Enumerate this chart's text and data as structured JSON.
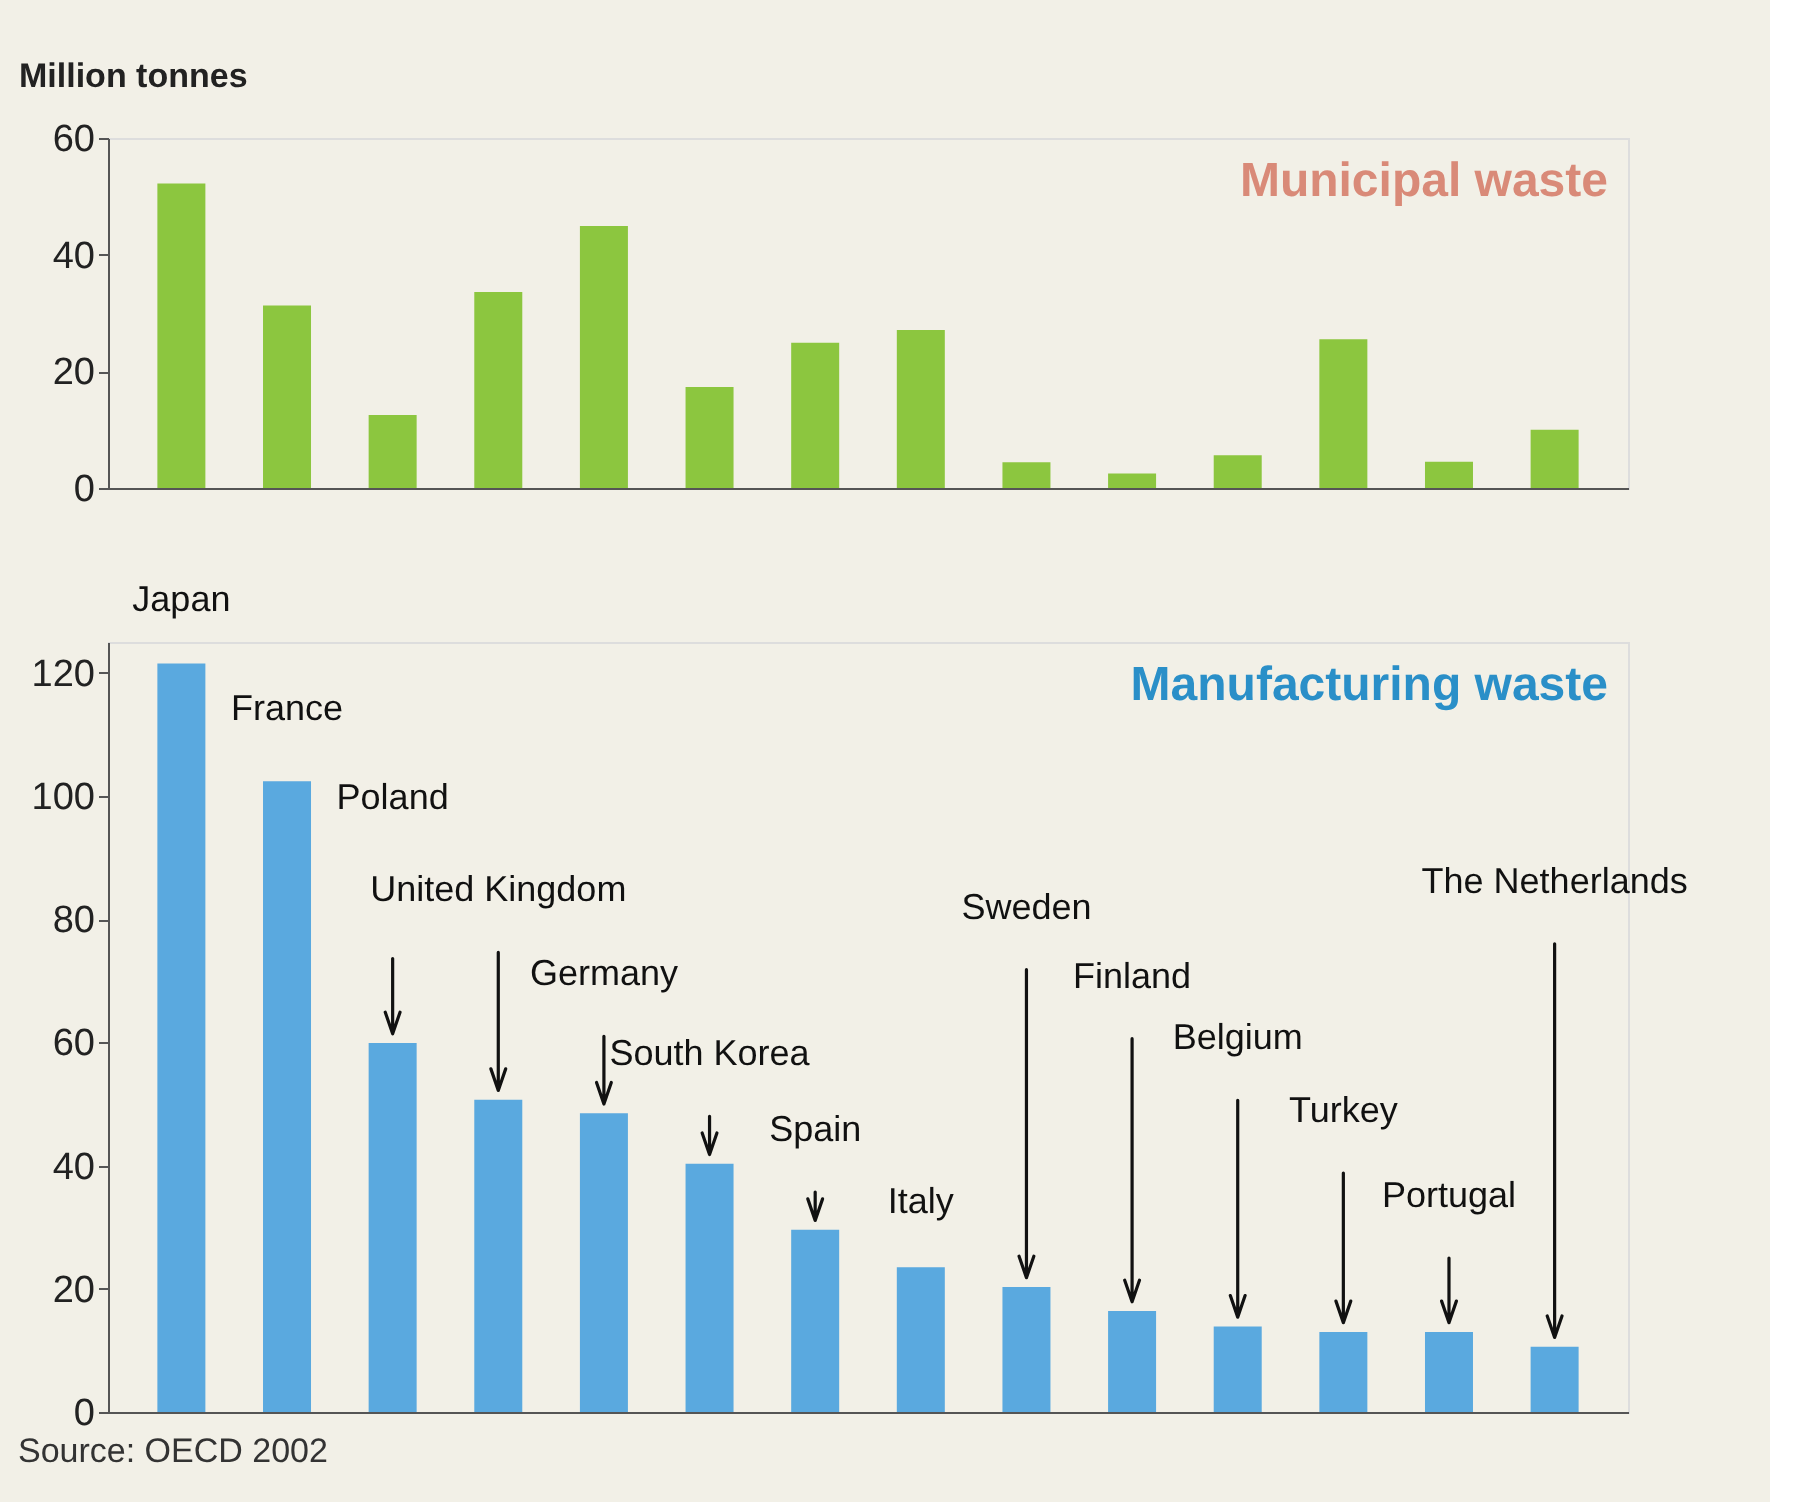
{
  "chart_data": [
    {
      "type": "bar",
      "title": "Municipal waste",
      "ylabel": "Million tonnes",
      "categories": [
        null,
        null,
        null,
        null,
        null,
        null,
        null,
        null,
        null,
        null,
        null,
        null,
        null,
        null
      ],
      "values": [
        52.2,
        31.3,
        12.5,
        33.6,
        44.9,
        17.3,
        24.9,
        27.1,
        4.4,
        2.5,
        5.6,
        25.5,
        4.5,
        10
      ],
      "color": "#8cc63f",
      "ylim": [
        0,
        60
      ],
      "yticks": [
        0,
        20,
        40,
        60
      ],
      "grid": false
    },
    {
      "type": "bar",
      "title": "Manufacturing waste",
      "categories": [
        "Japan",
        "France",
        "Poland",
        "United Kingdom",
        "Germany",
        "South Korea",
        "Spain",
        "Italy",
        "Sweden",
        "Finland",
        "Belgium",
        "Turkey",
        "Portugal",
        "The Netherlands"
      ],
      "values": [
        121.5,
        102.4,
        59.9,
        50.7,
        48.5,
        40.3,
        29.6,
        23.5,
        20.3,
        16.4,
        13.9,
        13,
        13,
        10.6
      ],
      "color": "#5aa9df",
      "ylim": [
        0,
        125
      ],
      "yticks": [
        0,
        20,
        40,
        60,
        80,
        100,
        120
      ],
      "grid": false,
      "annotations": [
        "Source: OECD 2002"
      ]
    }
  ]
}
